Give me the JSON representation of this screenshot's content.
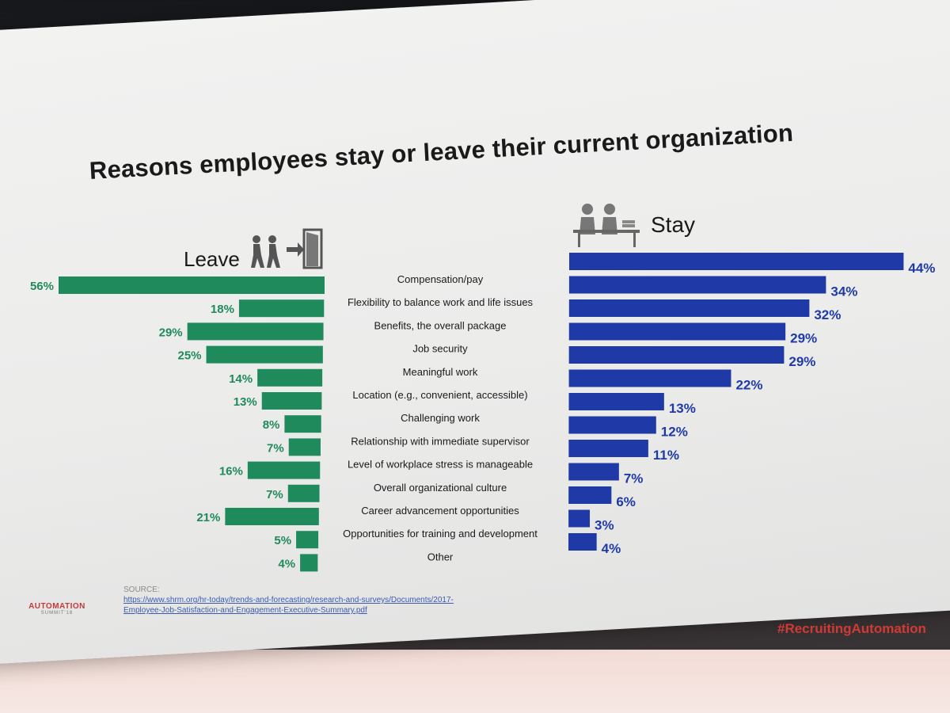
{
  "slide": {
    "title": "Reasons employees stay or leave their current organization",
    "leave_label": "Leave",
    "stay_label": "Stay",
    "source_heading": "SOURCE:",
    "source_line1": "https://www.shrm.org/hr-today/trends-and-forecasting/research-and-surveys/Documents/2017-",
    "source_line2": "Employee-Job-Satisfaction-and-Engagement-Executive-Summary.pdf",
    "logo_line1": "AUTOMATION",
    "logo_line2": "SUMMIT'18",
    "hashtag": "#RecruitingAutomation"
  },
  "colors": {
    "leave": "#1f8a5b",
    "stay": "#1f3aa6",
    "leave_text": "#1f8a5b",
    "stay_text": "#1f3aa6",
    "hashtag": "#d13a34"
  },
  "icons": {
    "leave": [
      "walking-people-icon",
      "exit-door-icon"
    ],
    "stay": [
      "people-at-desk-icon"
    ]
  },
  "chart_data": {
    "type": "bar",
    "title": "Reasons employees stay or leave their current organization",
    "categories": [
      "Compensation/pay",
      "Flexibility to balance work and life issues",
      "Benefits, the overall package",
      "Job security",
      "Meaningful work",
      "Location (e.g., convenient, accessible)",
      "Challenging work",
      "Relationship with immediate supervisor",
      "Level of workplace stress is manageable",
      "Overall organizational culture",
      "Career advancement opportunities",
      "Opportunities for training and development",
      "Other"
    ],
    "series": [
      {
        "name": "Leave",
        "values": [
          56,
          18,
          29,
          25,
          14,
          13,
          8,
          7,
          16,
          7,
          21,
          5,
          4
        ]
      },
      {
        "name": "Stay",
        "values": [
          44,
          34,
          32,
          29,
          29,
          22,
          13,
          12,
          11,
          7,
          6,
          3,
          4
        ]
      }
    ],
    "value_suffix": "%",
    "xlim": [
      0,
      60
    ],
    "grid": false,
    "legend": "none"
  }
}
